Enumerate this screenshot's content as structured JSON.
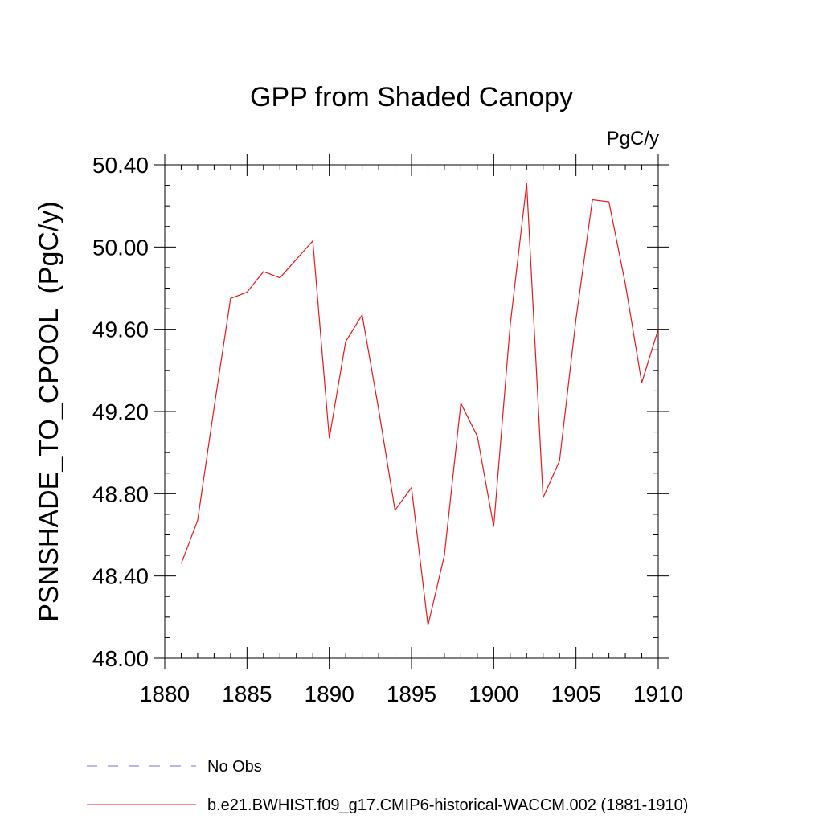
{
  "chart_data": {
    "type": "line",
    "title": "GPP from Shaded Canopy",
    "units_label": "PgC/y",
    "ylabel": "PSNSHADE_TO_CPOOL  (PgC/y)",
    "xlabel": "",
    "xlim": [
      1880,
      1910
    ],
    "ylim": [
      48.0,
      50.4
    ],
    "x_ticks": [
      1880,
      1885,
      1890,
      1895,
      1900,
      1905,
      1910
    ],
    "x_tick_labels": [
      "1880",
      "1885",
      "1890",
      "1895",
      "1900",
      "1905",
      "1910"
    ],
    "y_ticks": [
      48.0,
      48.4,
      48.8,
      49.2,
      49.6,
      50.0,
      50.4
    ],
    "y_tick_labels": [
      "48.00",
      "48.40",
      "48.80",
      "49.20",
      "49.60",
      "50.00",
      "50.40"
    ],
    "grid": false,
    "legend_position": "bottom",
    "colors": {
      "model": "#e8171c",
      "obs": "#7b6fd0"
    },
    "series": [
      {
        "name": "b.e21.BWHIST.f09_g17.CMIP6-historical-WACCM.002 (1881-1910)",
        "x": [
          1881,
          1882,
          1883,
          1884,
          1885,
          1886,
          1887,
          1888,
          1889,
          1890,
          1891,
          1892,
          1893,
          1894,
          1895,
          1896,
          1897,
          1898,
          1899,
          1900,
          1901,
          1902,
          1903,
          1904,
          1905,
          1906,
          1907,
          1908,
          1909,
          1910
        ],
        "values": [
          48.46,
          48.67,
          49.22,
          49.75,
          49.78,
          49.88,
          49.85,
          49.94,
          50.03,
          49.07,
          49.54,
          49.67,
          49.21,
          48.72,
          48.83,
          48.16,
          48.5,
          49.24,
          49.08,
          48.64,
          49.62,
          50.31,
          48.78,
          48.96,
          49.65,
          50.23,
          50.22,
          49.82,
          49.34,
          49.6
        ]
      }
    ],
    "legend": [
      {
        "label": "No Obs",
        "style": "dashed"
      },
      {
        "label": "b.e21.BWHIST.f09_g17.CMIP6-historical-WACCM.002 (1881-1910)",
        "style": "solid"
      }
    ]
  }
}
